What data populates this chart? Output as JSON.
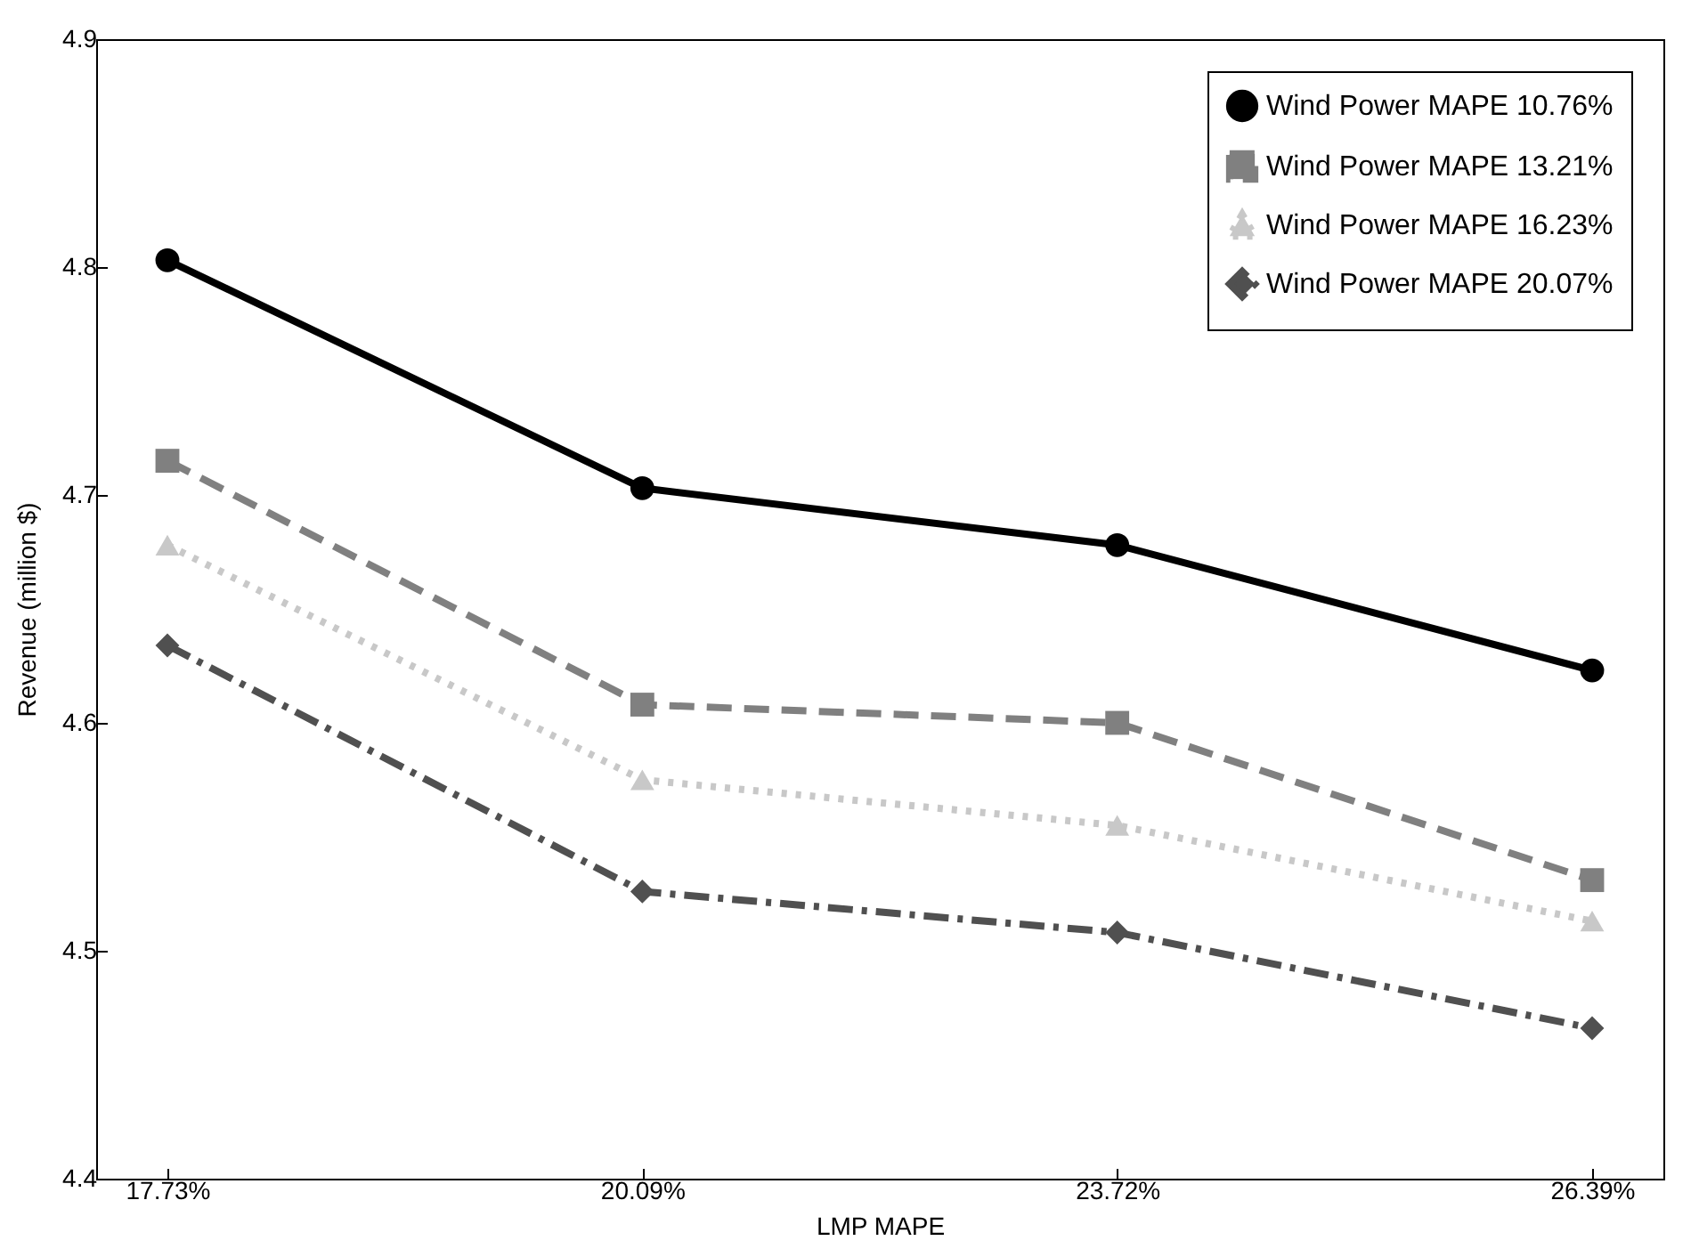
{
  "chart_data": {
    "type": "line",
    "xlabel": "LMP MAPE",
    "ylabel": "Revenue (million $)",
    "categories": [
      "17.73%",
      "20.09%",
      "23.72%",
      "26.39%"
    ],
    "ylim": [
      4.4,
      4.9
    ],
    "yticks": [
      4.4,
      4.5,
      4.6,
      4.7,
      4.8,
      4.9
    ],
    "grid": false,
    "legend": "top right",
    "series": [
      {
        "name": "Wind Power MAPE 10.76%",
        "color": "#000000",
        "marker": "circle",
        "line_style": "solid",
        "values": [
          4.803,
          4.703,
          4.678,
          4.623
        ]
      },
      {
        "name": "Wind Power MAPE 13.21%",
        "color": "#808080",
        "marker": "square",
        "line_style": "dashed",
        "values": [
          4.715,
          4.608,
          4.6,
          4.531
        ]
      },
      {
        "name": "Wind Power MAPE 16.23%",
        "color": "#c8c8c8",
        "marker": "triangle",
        "line_style": "dotted",
        "values": [
          4.678,
          4.575,
          4.555,
          4.513
        ]
      },
      {
        "name": "Wind Power MAPE 20.07%",
        "color": "#505050",
        "marker": "diamond",
        "line_style": "dashdot",
        "values": [
          4.634,
          4.526,
          4.508,
          4.466
        ]
      }
    ]
  }
}
